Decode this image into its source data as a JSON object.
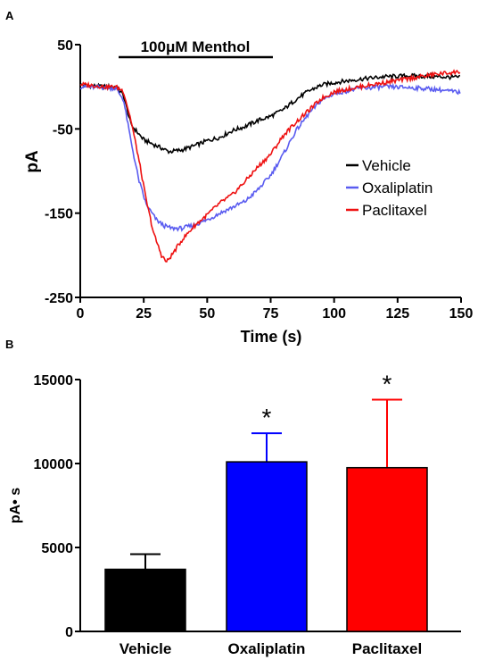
{
  "colors": {
    "vehicle": "#000000",
    "oxaliplatin": "#5a5cf0",
    "paclitaxel": "#ee1111",
    "bar_blue": "#0000ff",
    "bar_red": "#ff0000",
    "bar_black": "#000000"
  },
  "panel_a": {
    "label": "A",
    "stimulus_label": "100μM Menthol",
    "chart_data": {
      "type": "line",
      "xlabel": "Time (s)",
      "ylabel": "pA",
      "xlim": [
        0,
        150
      ],
      "ylim": [
        -250,
        50
      ],
      "x_ticks": [
        "0",
        "25",
        "50",
        "75",
        "100",
        "125",
        "150"
      ],
      "y_ticks": [
        "50",
        "-50",
        "-150",
        "-250"
      ],
      "stimulus_window": [
        17,
        76
      ],
      "legend_position": "right",
      "series": [
        {
          "name": "Vehicle",
          "color": "#000000",
          "x": [
            0,
            10,
            14,
            17,
            20,
            25,
            30,
            35,
            40,
            45,
            50,
            55,
            60,
            65,
            70,
            75,
            80,
            85,
            90,
            95,
            100,
            110,
            120,
            130,
            140,
            150
          ],
          "y": [
            2,
            0,
            0,
            -10,
            -45,
            -63,
            -70,
            -77,
            -75,
            -70,
            -64,
            -60,
            -52,
            -47,
            -40,
            -35,
            -27,
            -15,
            -5,
            2,
            5,
            9,
            12,
            13,
            12,
            11
          ]
        },
        {
          "name": "Oxaliplatin",
          "color": "#5a5cf0",
          "x": [
            0,
            10,
            14,
            17,
            20,
            23,
            26,
            30,
            33,
            36,
            40,
            45,
            50,
            55,
            60,
            65,
            70,
            75,
            80,
            85,
            90,
            95,
            100,
            110,
            120,
            130,
            140,
            150
          ],
          "y": [
            0,
            -1,
            -2,
            -15,
            -65,
            -110,
            -140,
            -158,
            -165,
            -168,
            -168,
            -164,
            -158,
            -150,
            -143,
            -136,
            -122,
            -105,
            -80,
            -52,
            -32,
            -16,
            -8,
            -2,
            0,
            -1,
            -3,
            -7
          ]
        },
        {
          "name": "Paclitaxel",
          "color": "#ee1111",
          "x": [
            0,
            10,
            14,
            17,
            20,
            23,
            26,
            29,
            32,
            34,
            36,
            40,
            45,
            50,
            55,
            60,
            65,
            70,
            75,
            80,
            85,
            90,
            95,
            100,
            110,
            120,
            130,
            140,
            150
          ],
          "y": [
            3,
            0,
            0,
            -5,
            -40,
            -85,
            -135,
            -175,
            -200,
            -208,
            -200,
            -182,
            -165,
            -152,
            -138,
            -128,
            -112,
            -95,
            -80,
            -58,
            -42,
            -28,
            -14,
            -6,
            0,
            5,
            10,
            15,
            18
          ]
        }
      ]
    }
  },
  "panel_b": {
    "label": "B",
    "chart_data": {
      "type": "bar",
      "categories": [
        "Vehicle",
        "Oxaliplatin",
        "Paclitaxel"
      ],
      "values": [
        3700,
        10100,
        9750
      ],
      "error_upper": [
        4600,
        11800,
        13800
      ],
      "bar_colors": [
        "#000000",
        "#0000ff",
        "#ff0000"
      ],
      "significance": [
        "",
        "*",
        "*"
      ],
      "ylabel": "pA• s",
      "xlabel": "",
      "ylim": [
        0,
        15000
      ],
      "y_ticks": [
        "0",
        "5000",
        "10000",
        "15000"
      ]
    }
  }
}
